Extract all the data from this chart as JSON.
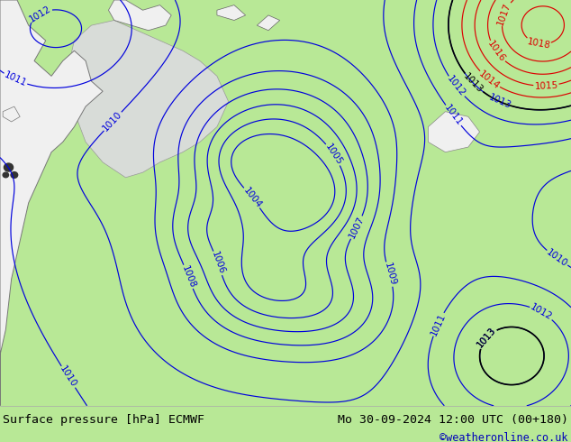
{
  "title_left": "Surface pressure [hPa] ECMWF",
  "title_right": "Mo 30-09-2024 12:00 UTC (00+180)",
  "credit": "©weatheronline.co.uk",
  "bg_color": "#b8e896",
  "footer_bg": "#ffffff",
  "contour_blue": "#0000dd",
  "contour_black": "#000000",
  "contour_red": "#dd0000",
  "label_fontsize": 7.5,
  "footer_fontsize": 9.5,
  "credit_fontsize": 8.5,
  "footer_color": "#000000",
  "credit_color": "#0000bb",
  "land_white": "#f0f0f0",
  "land_gray": "#c8c8c8",
  "sea_inlet": "#d8dcd8"
}
